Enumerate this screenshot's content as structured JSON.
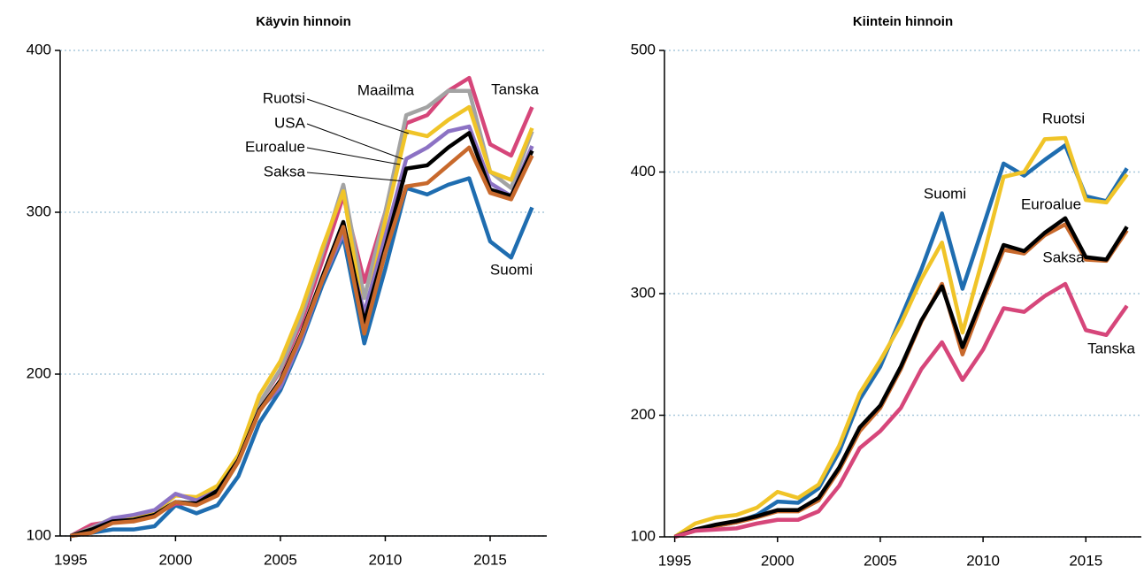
{
  "chart_data": [
    {
      "type": "line",
      "title": "Käyvin hinnoin",
      "x": [
        1995,
        1996,
        1997,
        1998,
        1999,
        2000,
        2001,
        2002,
        2003,
        2004,
        2005,
        2006,
        2007,
        2008,
        2009,
        2010,
        2011,
        2012,
        2013,
        2014,
        2015,
        2016,
        2017
      ],
      "xlim": [
        1994.5,
        2017.7
      ],
      "xticks": [
        1995,
        2000,
        2005,
        2010,
        2015
      ],
      "ylim": [
        100,
        400
      ],
      "yticks": [
        100,
        200,
        300,
        400
      ],
      "grid": true,
      "series": [
        {
          "name": "Suomi",
          "color": "#1f6db0",
          "values": [
            100,
            102,
            104,
            104,
            106,
            119,
            114,
            119,
            137,
            170,
            190,
            220,
            255,
            285,
            219,
            265,
            315,
            311,
            317,
            321,
            282,
            272,
            303
          ]
        },
        {
          "name": "Tanska",
          "color": "#d6467a",
          "values": [
            100,
            107,
            109,
            110,
            113,
            120,
            120,
            127,
            148,
            182,
            202,
            232,
            270,
            310,
            257,
            300,
            355,
            360,
            375,
            383,
            342,
            335,
            365
          ]
        },
        {
          "name": "Maailma",
          "color": "#a3a3a3",
          "values": [
            100,
            105,
            111,
            109,
            113,
            126,
            122,
            130,
            150,
            182,
            203,
            235,
            275,
            317,
            247,
            300,
            360,
            365,
            375,
            375,
            325,
            315,
            350
          ]
        },
        {
          "name": "Ruotsi",
          "color": "#f0c428",
          "values": [
            100,
            104,
            110,
            112,
            115,
            125,
            124,
            131,
            150,
            187,
            208,
            240,
            278,
            313,
            233,
            295,
            350,
            347,
            357,
            365,
            325,
            320,
            352
          ]
        },
        {
          "name": "USA",
          "color": "#8c72c4",
          "values": [
            100,
            104,
            111,
            113,
            116,
            126,
            122,
            128,
            147,
            178,
            192,
            222,
            258,
            287,
            238,
            285,
            333,
            340,
            350,
            353,
            318,
            310,
            341
          ]
        },
        {
          "name": "Euroalue",
          "color": "#000000",
          "values": [
            100,
            104,
            109,
            110,
            113,
            121,
            120,
            128,
            147,
            178,
            196,
            225,
            260,
            294,
            232,
            278,
            327,
            329,
            340,
            349,
            314,
            310,
            338
          ]
        },
        {
          "name": "Saksa",
          "color": "#c8692c",
          "values": [
            100,
            102,
            108,
            109,
            112,
            121,
            119,
            125,
            146,
            177,
            195,
            224,
            258,
            291,
            225,
            275,
            316,
            318,
            329,
            340,
            312,
            308,
            335
          ]
        }
      ]
    },
    {
      "type": "line",
      "title": "Kiintein hinnoin",
      "x": [
        1995,
        1996,
        1997,
        1998,
        1999,
        2000,
        2001,
        2002,
        2003,
        2004,
        2005,
        2006,
        2007,
        2008,
        2009,
        2010,
        2011,
        2012,
        2013,
        2014,
        2015,
        2016,
        2017
      ],
      "xlim": [
        1994.5,
        2017.7
      ],
      "xticks": [
        1995,
        2000,
        2005,
        2010,
        2015
      ],
      "ylim": [
        100,
        500
      ],
      "yticks": [
        100,
        200,
        300,
        400,
        500
      ],
      "grid": true,
      "series": [
        {
          "name": "Suomi",
          "color": "#1f6db0",
          "values": [
            100,
            106,
            109,
            112,
            118,
            129,
            128,
            140,
            170,
            213,
            240,
            280,
            320,
            366,
            304,
            355,
            407,
            397,
            410,
            422,
            380,
            376,
            403
          ]
        },
        {
          "name": "Ruotsi",
          "color": "#f0c428",
          "values": [
            100,
            111,
            116,
            118,
            124,
            137,
            132,
            143,
            175,
            218,
            245,
            275,
            312,
            342,
            268,
            330,
            396,
            400,
            427,
            428,
            377,
            375,
            398
          ]
        },
        {
          "name": "Saksa",
          "color": "#c8692c",
          "values": [
            100,
            105,
            109,
            112,
            116,
            121,
            121,
            130,
            155,
            187,
            206,
            238,
            277,
            308,
            250,
            295,
            336,
            333,
            348,
            357,
            328,
            327,
            352
          ]
        },
        {
          "name": "Euroalue",
          "color": "#000000",
          "values": [
            100,
            106,
            110,
            113,
            117,
            122,
            122,
            132,
            157,
            190,
            208,
            240,
            278,
            306,
            256,
            298,
            340,
            335,
            350,
            362,
            330,
            328,
            355
          ]
        },
        {
          "name": "Tanska",
          "color": "#d6467a",
          "values": [
            100,
            105,
            106,
            107,
            111,
            114,
            114,
            121,
            142,
            173,
            187,
            206,
            238,
            260,
            229,
            254,
            288,
            285,
            298,
            308,
            270,
            266,
            290
          ]
        }
      ]
    }
  ]
}
